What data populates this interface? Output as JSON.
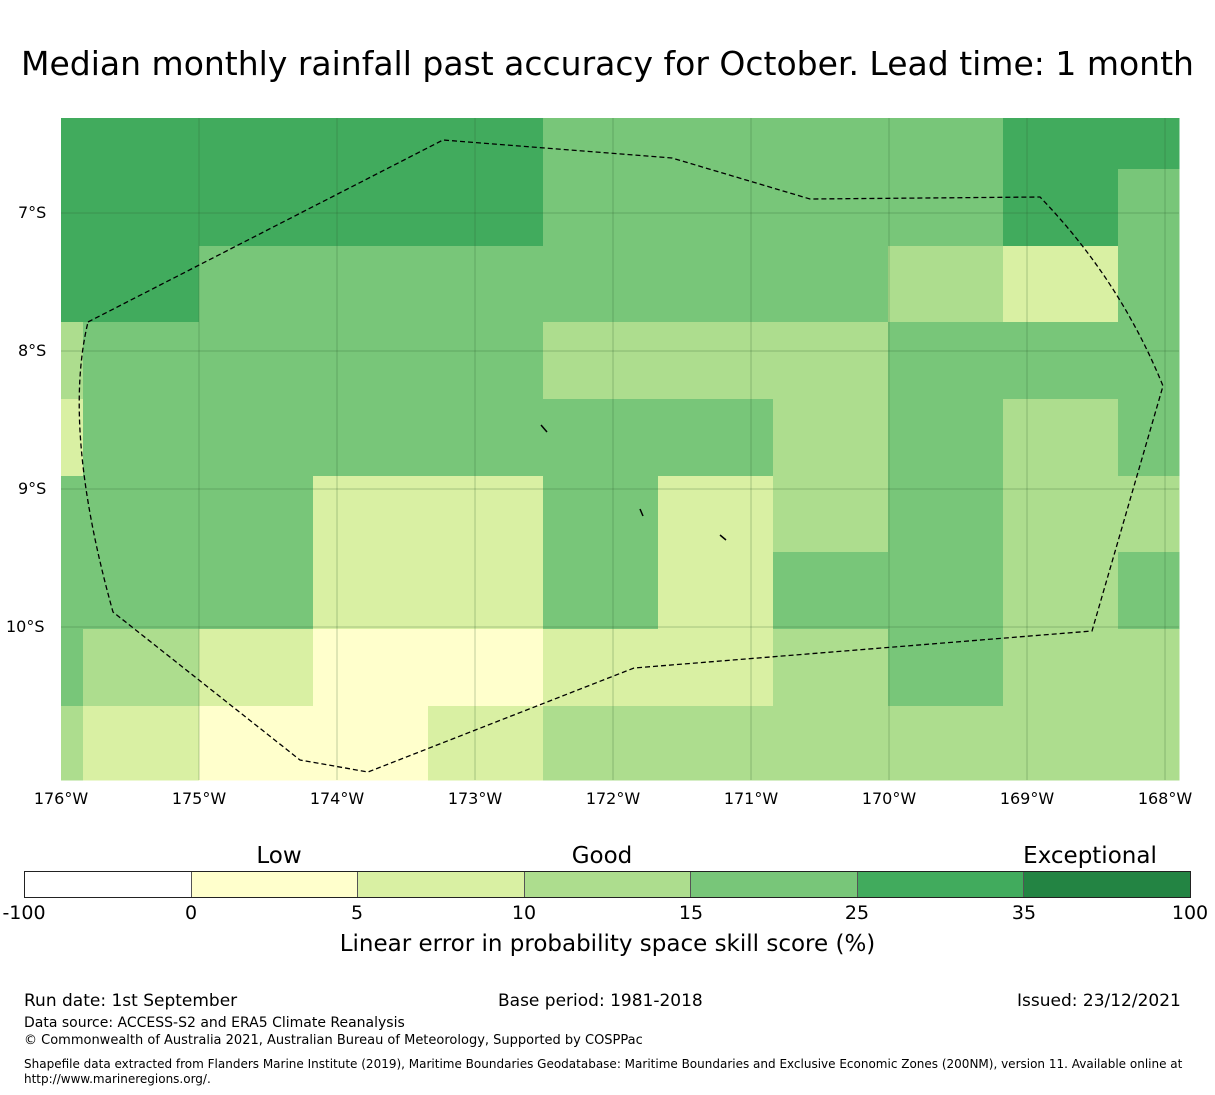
{
  "title": "Median monthly rainfall past accuracy for October. Lead time: 1 month",
  "map": {
    "lat_labels": [
      "7°S",
      "8°S",
      "9°S",
      "10°S"
    ],
    "lon_labels": [
      "176°W",
      "175°W",
      "174°W",
      "173°W",
      "172°W",
      "171°W",
      "170°W",
      "169°W",
      "168°W"
    ],
    "lon_range": [
      -176,
      -168
    ],
    "lat_range": [
      -11.1,
      -6.3
    ],
    "grid": true,
    "eez_boundary": "dashed"
  },
  "categories": {
    "low": "Low",
    "good": "Good",
    "exceptional": "Exceptional"
  },
  "colorbar": {
    "ticks": [
      "-100",
      "0",
      "5",
      "10",
      "15",
      "25",
      "35",
      "100"
    ],
    "colors": [
      "#ffffff",
      "#ffffcc",
      "#d9f0a3",
      "#addd8e",
      "#78c679",
      "#41ab5d",
      "#238443"
    ],
    "label": "Linear error in probability space skill score (%)"
  },
  "footer": {
    "run_date": "Run date: 1st September",
    "base_period": "Base period: 1981-2018",
    "issued": "Issued: 23/12/2021",
    "data_source": "Data source: ACCESS-S2 and ERA5 Climate Reanalysis",
    "copyright": "© Commonwealth of Australia 2021, Australian Bureau of Meteorology, Supported by COSPPac",
    "shapefile_line1": "Shapefile data extracted from Flanders Marine Institute (2019), Maritime Boundaries Geodatabase: Maritime Boundaries and Exclusive Economic Zones (200NM), version 11. Available online at",
    "shapefile_line2": "http://www.marineregions.org/."
  }
}
